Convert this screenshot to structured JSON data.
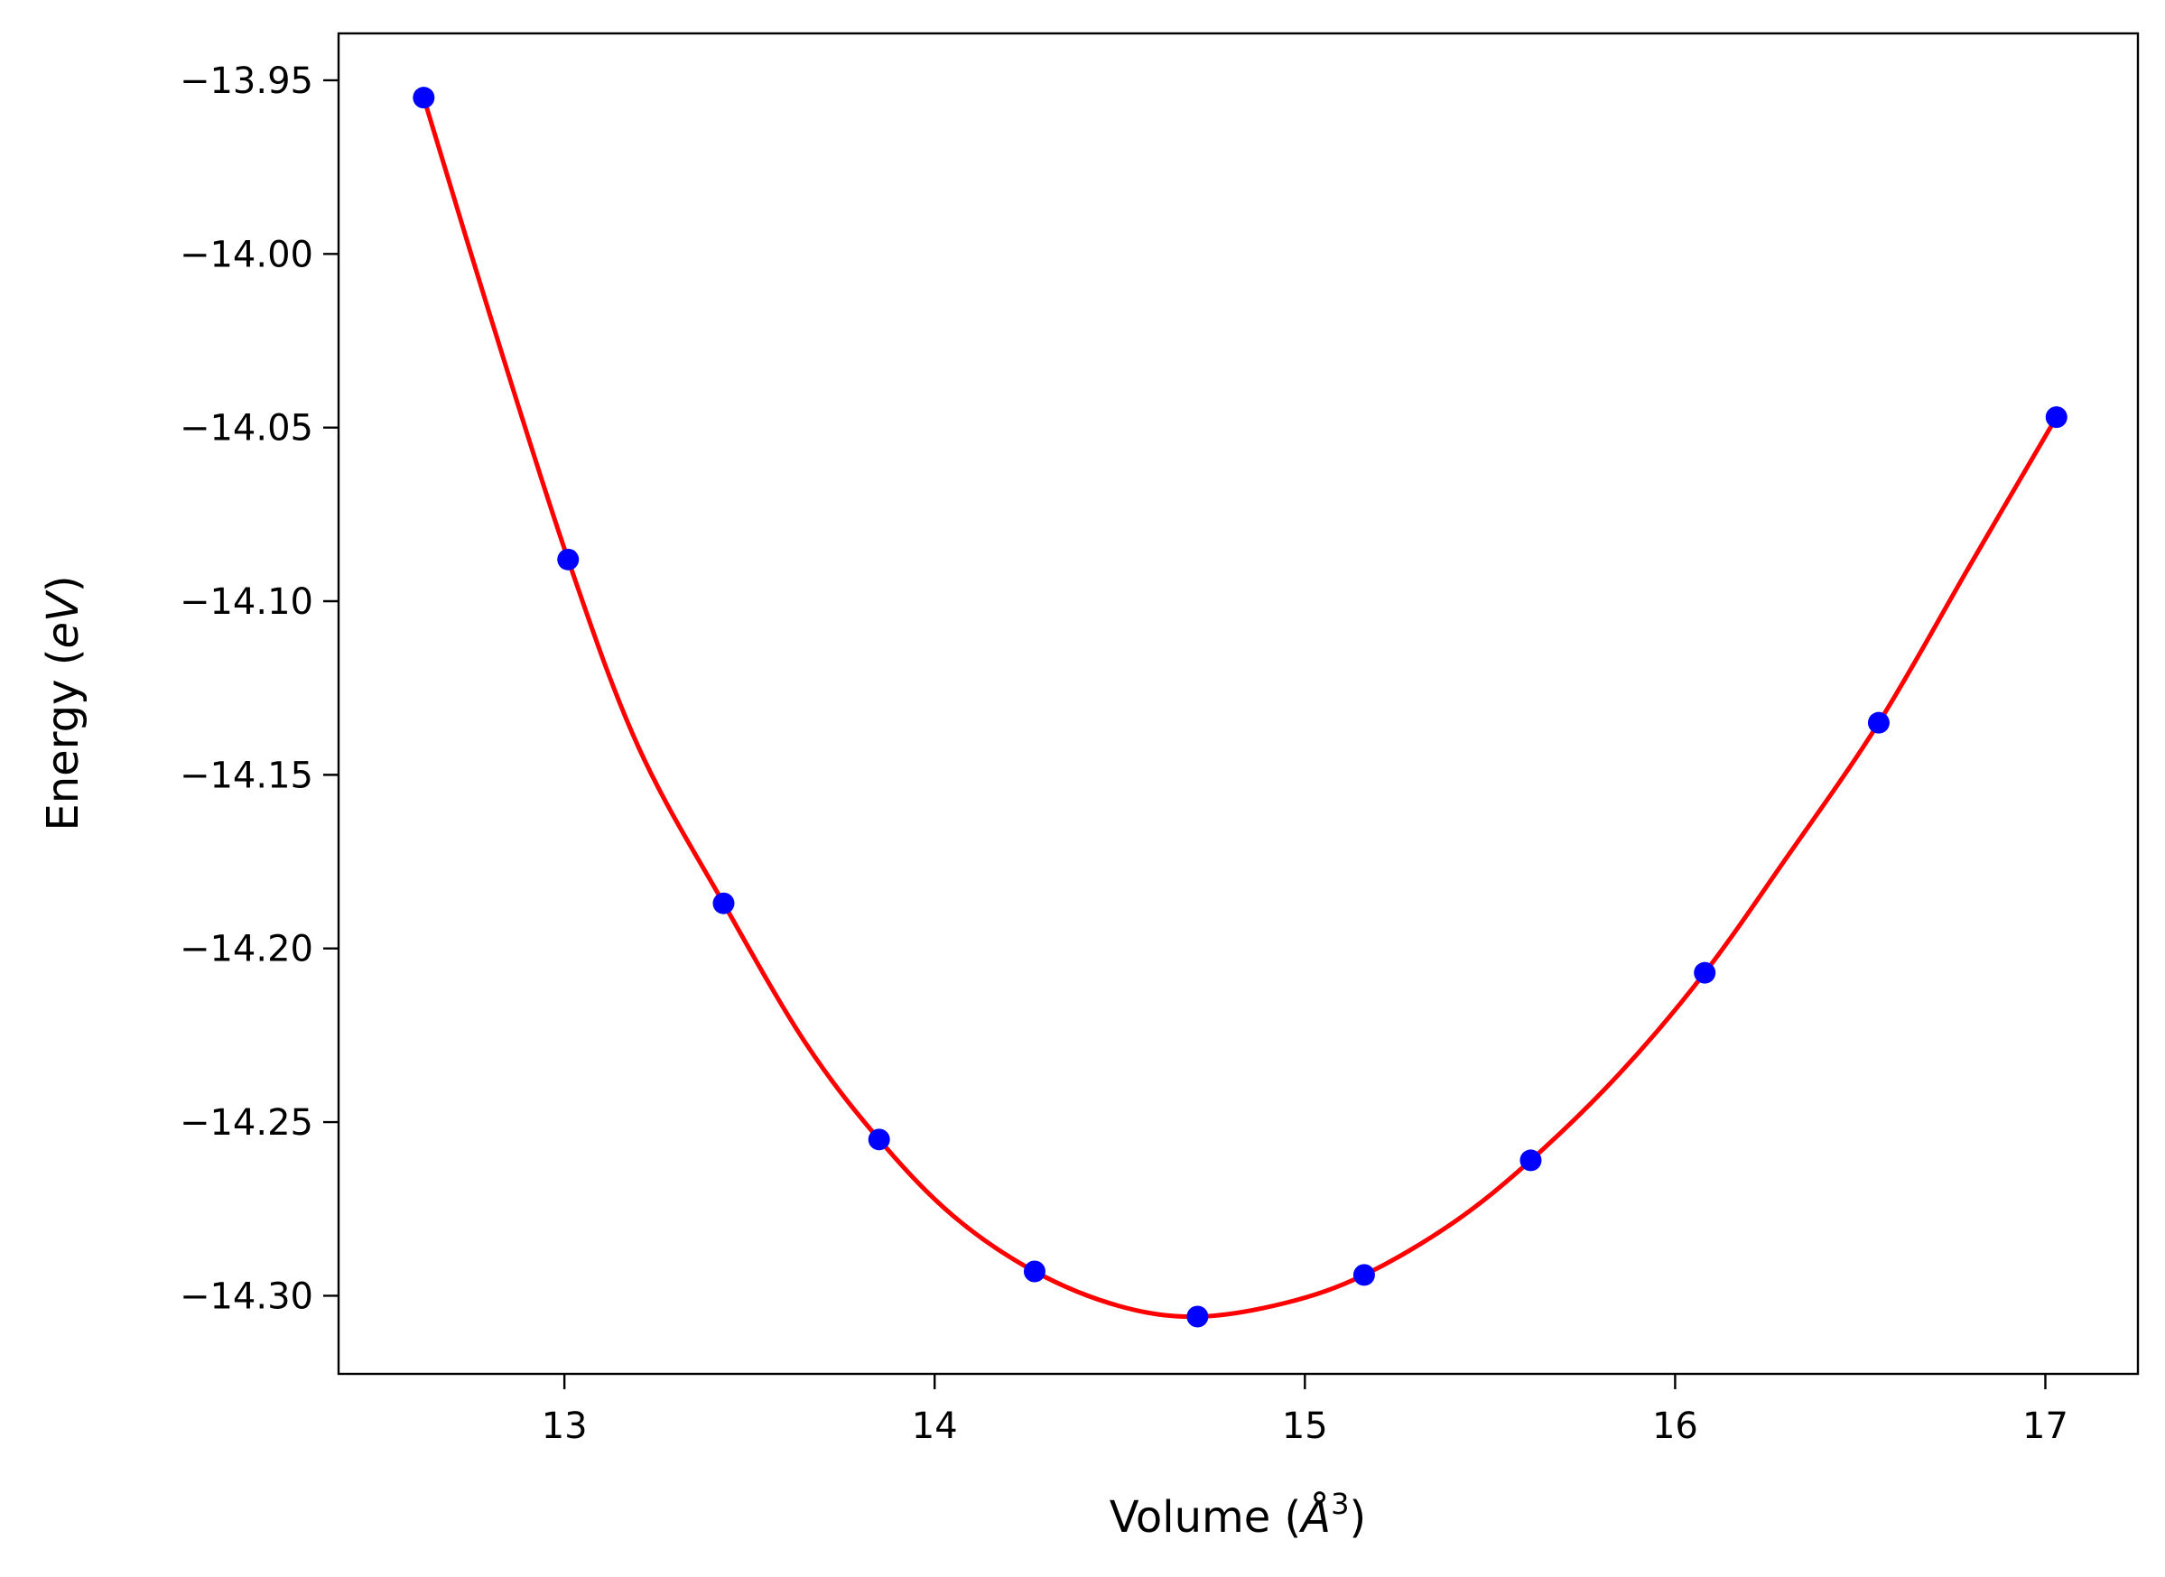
{
  "chart_data": {
    "type": "scatter",
    "xlabel": {
      "prefix": "Volume (",
      "symbol": "Å",
      "sup": "3",
      "suffix": ")"
    },
    "ylabel": {
      "prefix": "Energy (",
      "symbol": "eV",
      "suffix": ")"
    },
    "xlim": [
      12.39,
      17.25
    ],
    "ylim": [
      -14.3225,
      -13.9365
    ],
    "x_ticks": [
      13,
      14,
      15,
      16,
      17
    ],
    "y_ticks": [
      -13.95,
      -14.0,
      -14.05,
      -14.1,
      -14.15,
      -14.2,
      -14.25,
      -14.3
    ],
    "x_tick_labels": [
      "13",
      "14",
      "15",
      "16",
      "17"
    ],
    "y_tick_labels": [
      "−13.95",
      "−14.00",
      "−14.05",
      "−14.10",
      "−14.15",
      "−14.20",
      "−14.25",
      "−14.30"
    ],
    "grid": false,
    "legend": "none",
    "series": [
      {
        "kind": "points",
        "color": "#0000ff",
        "x": [
          12.62,
          13.01,
          13.43,
          13.85,
          14.27,
          14.71,
          15.16,
          15.61,
          16.08,
          16.55,
          17.03
        ],
        "y": [
          -13.955,
          -14.088,
          -14.187,
          -14.255,
          -14.293,
          -14.306,
          -14.294,
          -14.261,
          -14.207,
          -14.135,
          -14.047
        ]
      },
      {
        "kind": "fit",
        "color": "#ff0000",
        "x": [
          12.62,
          12.8,
          13.01,
          13.2,
          13.43,
          13.65,
          13.85,
          14.05,
          14.27,
          14.5,
          14.71,
          14.95,
          15.16,
          15.4,
          15.61,
          15.85,
          16.08,
          16.3,
          16.55,
          16.8,
          17.03
        ],
        "y": [
          -13.955,
          -14.018,
          -14.088,
          -14.142,
          -14.187,
          -14.227,
          -14.255,
          -14.277,
          -14.293,
          -14.303,
          -14.306,
          -14.302,
          -14.294,
          -14.279,
          -14.261,
          -14.236,
          -14.207,
          -14.174,
          -14.135,
          -14.089,
          -14.047
        ]
      }
    ]
  }
}
